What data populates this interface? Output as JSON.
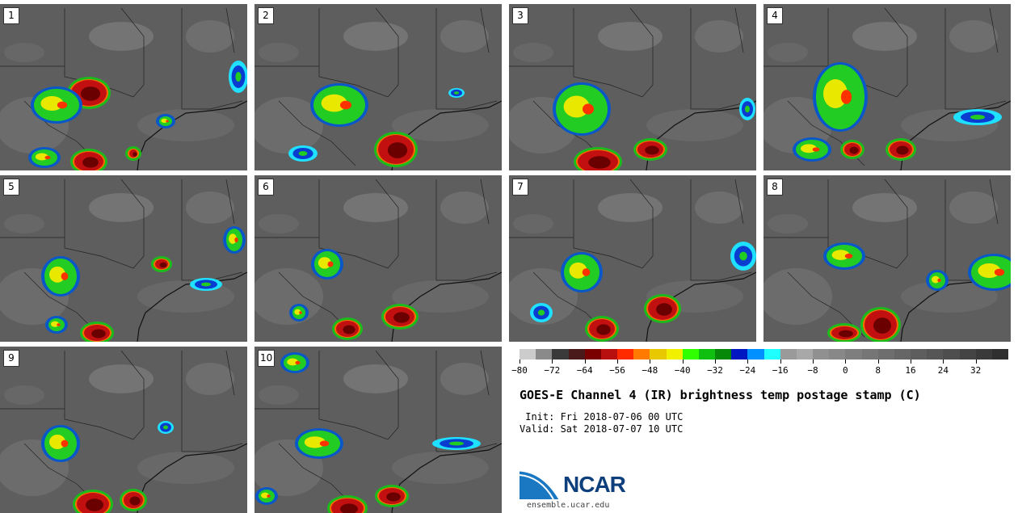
{
  "panels": [
    {
      "label": "1"
    },
    {
      "label": "2"
    },
    {
      "label": "3"
    },
    {
      "label": "4"
    },
    {
      "label": "5"
    },
    {
      "label": "6"
    },
    {
      "label": "7"
    },
    {
      "label": "8"
    },
    {
      "label": "9"
    },
    {
      "label": "10"
    }
  ],
  "colorbar": {
    "colors": [
      "#cccccc",
      "#8a8a8a",
      "#3a3a3a",
      "#4a1a1a",
      "#7a0000",
      "#b80f0f",
      "#ff2a00",
      "#ff7a00",
      "#e8c800",
      "#f0f000",
      "#30ff00",
      "#10c010",
      "#088808",
      "#0016c0",
      "#0090ff",
      "#20ffff",
      "#9a9a9a",
      "#a8a8a8",
      "#909090",
      "#888888",
      "#7e7e7e",
      "#767676",
      "#6e6e6e",
      "#666666",
      "#5e5e5e",
      "#565656",
      "#4e4e4e",
      "#444444",
      "#3a3a3a",
      "#303030"
    ],
    "min": -80,
    "max": 40,
    "ticks": [
      "−80",
      "−72",
      "−64",
      "−56",
      "−48",
      "−40",
      "−32",
      "−24",
      "−16",
      "−8",
      "0",
      "8",
      "16",
      "24",
      "32"
    ],
    "tick_values": [
      -80,
      -72,
      -64,
      -56,
      -48,
      -40,
      -32,
      -24,
      -16,
      -8,
      0,
      8,
      16,
      24,
      32
    ]
  },
  "title": "GOES-E Channel 4 (IR) brightness temp postage stamp (C)",
  "init": " Init: Fri 2018-07-06 00 UTC",
  "valid": "Valid: Sat 2018-07-07 10 UTC",
  "logo_text": "NCAR",
  "website": "ensemble.ucar.edu"
}
